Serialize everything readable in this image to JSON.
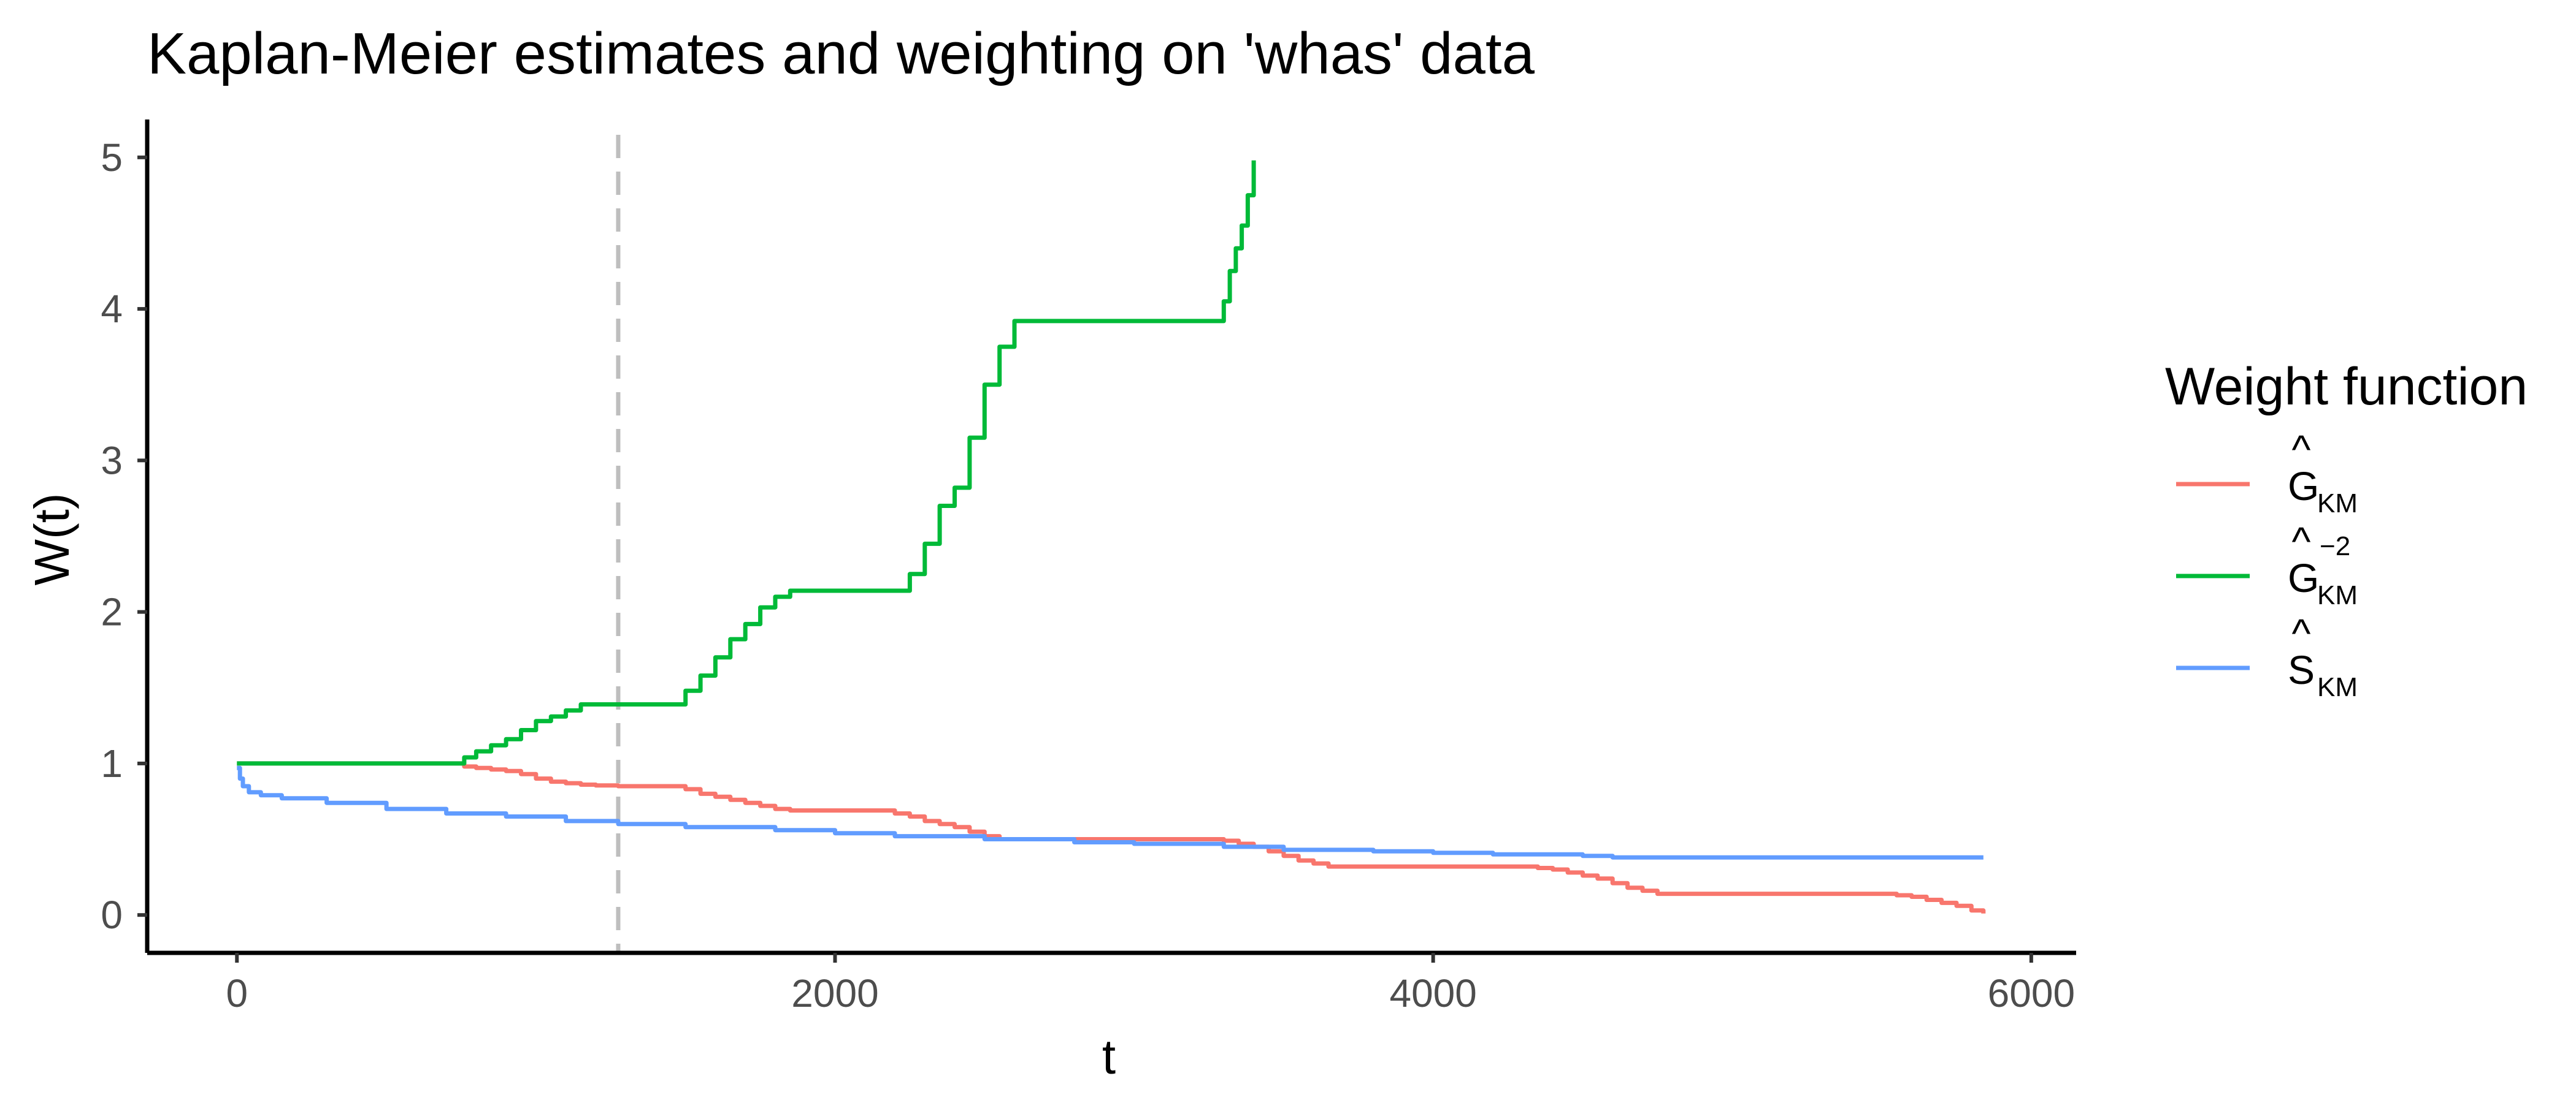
{
  "chart_data": {
    "type": "line",
    "title": "Kaplan-Meier estimates and weighting on 'whas' data",
    "xlabel": "t",
    "ylabel": "W(t)",
    "xlim": [
      -300,
      6150
    ],
    "ylim": [
      -0.25,
      5.25
    ],
    "xticks": [
      0,
      2000,
      4000,
      6000
    ],
    "yticks": [
      0,
      1,
      2,
      3,
      4,
      5
    ],
    "grid": false,
    "legend_position": "right",
    "legend_title": "Weight function",
    "vline": {
      "x": 1275,
      "style": "dashed",
      "color": "#bebebe"
    },
    "series": [
      {
        "label_base": "G",
        "label_hat": "^",
        "label_sub": "KM",
        "label_sup": "",
        "color": "#f8766d",
        "x": [
          0,
          750,
          760,
          800,
          850,
          900,
          950,
          1000,
          1050,
          1100,
          1150,
          1200,
          1275,
          1350,
          1460,
          1500,
          1550,
          1600,
          1650,
          1700,
          1750,
          1800,
          1850,
          2100,
          2200,
          2250,
          2300,
          2350,
          2400,
          2450,
          2500,
          2550,
          2600,
          3250,
          3300,
          3350,
          3400,
          3450,
          3500,
          3550,
          3600,
          3650,
          4300,
          4350,
          4400,
          4450,
          4500,
          4550,
          4600,
          4650,
          4700,
          4750,
          5550,
          5600,
          5650,
          5700,
          5750,
          5800,
          5840
        ],
        "y": [
          1.0,
          1.0,
          0.98,
          0.97,
          0.96,
          0.95,
          0.93,
          0.9,
          0.88,
          0.87,
          0.86,
          0.855,
          0.85,
          0.85,
          0.85,
          0.83,
          0.8,
          0.78,
          0.76,
          0.74,
          0.72,
          0.7,
          0.69,
          0.69,
          0.67,
          0.65,
          0.62,
          0.6,
          0.58,
          0.55,
          0.52,
          0.5,
          0.5,
          0.5,
          0.49,
          0.47,
          0.45,
          0.42,
          0.39,
          0.36,
          0.34,
          0.32,
          0.32,
          0.31,
          0.3,
          0.28,
          0.26,
          0.24,
          0.21,
          0.18,
          0.16,
          0.14,
          0.13,
          0.12,
          0.1,
          0.08,
          0.06,
          0.03,
          0.01
        ]
      },
      {
        "label_base": "G",
        "label_hat": "^",
        "label_sub": "KM",
        "label_sup": "−2",
        "color": "#00ba38",
        "x": [
          0,
          750,
          760,
          800,
          850,
          900,
          950,
          1000,
          1050,
          1100,
          1150,
          1460,
          1500,
          1550,
          1600,
          1650,
          1700,
          1750,
          1800,
          1850,
          2200,
          2250,
          2300,
          2350,
          2400,
          2450,
          2500,
          2550,
          2600,
          3280,
          3300,
          3320,
          3340,
          3360,
          3380,
          3400
        ],
        "y": [
          1.0,
          1.0,
          1.04,
          1.08,
          1.12,
          1.16,
          1.22,
          1.28,
          1.31,
          1.35,
          1.39,
          1.39,
          1.48,
          1.58,
          1.7,
          1.82,
          1.92,
          2.03,
          2.1,
          2.14,
          2.14,
          2.25,
          2.45,
          2.7,
          2.82,
          3.15,
          3.5,
          3.75,
          3.92,
          3.92,
          4.05,
          4.25,
          4.4,
          4.55,
          4.75,
          4.98
        ]
      },
      {
        "label_base": "S",
        "label_hat": "^",
        "label_sub": "KM",
        "label_sup": "",
        "color": "#619cff",
        "x": [
          0,
          10,
          20,
          40,
          80,
          150,
          300,
          500,
          700,
          900,
          1100,
          1275,
          1500,
          1800,
          2000,
          2200,
          2500,
          2800,
          3000,
          3300,
          3500,
          3800,
          4000,
          4200,
          4500,
          4600,
          5000,
          5500,
          5840
        ],
        "y": [
          0.97,
          0.9,
          0.85,
          0.81,
          0.79,
          0.77,
          0.74,
          0.7,
          0.67,
          0.65,
          0.62,
          0.6,
          0.58,
          0.56,
          0.54,
          0.52,
          0.5,
          0.48,
          0.47,
          0.45,
          0.43,
          0.42,
          0.41,
          0.4,
          0.39,
          0.38,
          0.38,
          0.38,
          0.38
        ]
      }
    ]
  }
}
